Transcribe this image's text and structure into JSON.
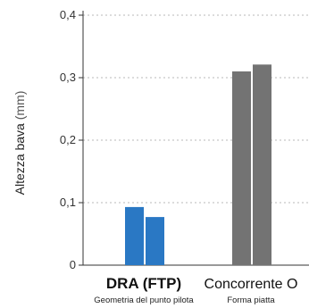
{
  "chart_data": {
    "type": "bar",
    "ylabel_main": "Altezza bava",
    "ylabel_unit": "(mm)",
    "ylim": [
      0,
      0.4
    ],
    "yticks": [
      "0",
      "0,1",
      "0,2",
      "0,3",
      "0,4"
    ],
    "grid": true,
    "groups": [
      {
        "label": "DRA (FTP)",
        "sublabel": "Geometria del punto pilota",
        "color": "#2a78c4",
        "values": [
          0.093,
          0.077
        ]
      },
      {
        "label": "Concorrente O",
        "sublabel": "Forma piatta",
        "color": "#737373",
        "values": [
          0.31,
          0.321
        ]
      }
    ]
  }
}
